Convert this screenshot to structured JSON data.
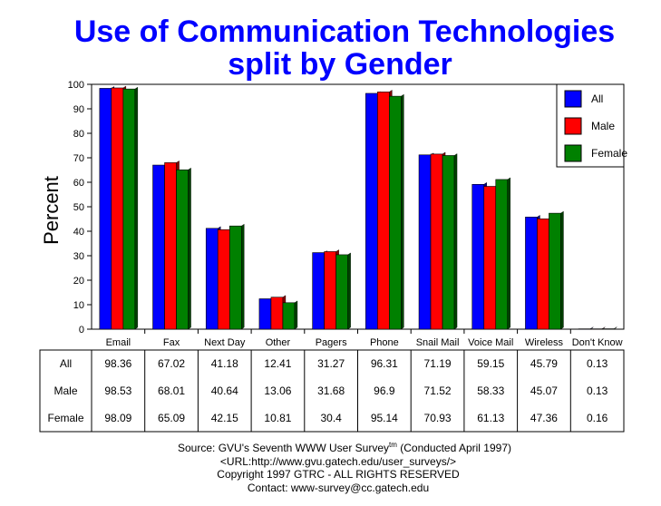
{
  "chart_data": {
    "type": "bar",
    "title": [
      "Use of Communication Technologies",
      "split by Gender"
    ],
    "xlabel": "",
    "ylabel": "Percent",
    "ylim": [
      0,
      100
    ],
    "yticks": [
      0,
      10,
      20,
      30,
      40,
      50,
      60,
      70,
      80,
      90,
      100
    ],
    "grid": false,
    "legend_position": "top-right",
    "categories": [
      "Email",
      "Fax",
      "Next Day",
      "Other",
      "Pagers",
      "Phone",
      "Snail Mail",
      "Voice Mail",
      "Wireless",
      "Don't Know"
    ],
    "series": [
      {
        "name": "All",
        "color": "#0000ff",
        "values": [
          98.36,
          67.02,
          41.18,
          12.41,
          31.27,
          96.31,
          71.19,
          59.15,
          45.79,
          0.13
        ]
      },
      {
        "name": "Male",
        "color": "#ff0000",
        "values": [
          98.53,
          68.01,
          40.64,
          13.06,
          31.68,
          96.9,
          71.52,
          58.33,
          45.07,
          0.13
        ]
      },
      {
        "name": "Female",
        "color": "#008000",
        "values": [
          98.09,
          65.09,
          42.15,
          10.81,
          30.4,
          95.14,
          70.93,
          61.13,
          47.36,
          0.16
        ]
      }
    ]
  },
  "footer": {
    "source": "Source: GVU's Seventh WWW User Survey",
    "tm": "tm",
    "conducted": " (Conducted April 1997)",
    "url": "<URL:http://www.gvu.gatech.edu/user_surveys/>",
    "copyright": "Copyright 1997 GTRC - ALL RIGHTS RESERVED",
    "contact": "Contact: www-survey@cc.gatech.edu"
  }
}
